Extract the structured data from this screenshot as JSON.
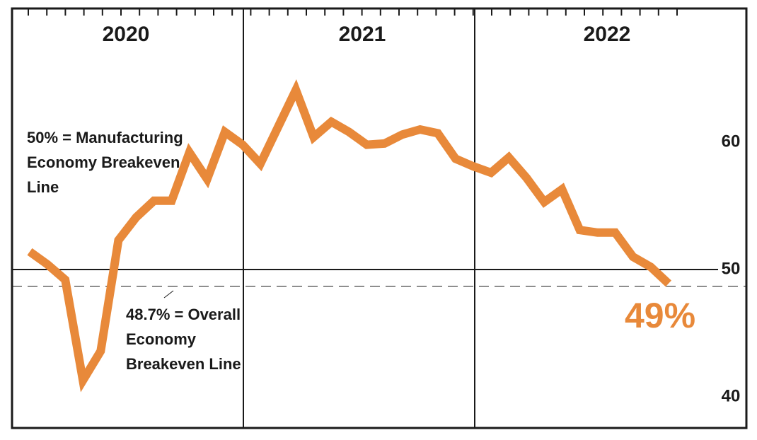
{
  "chart_data": {
    "type": "line",
    "year_labels": [
      "2020",
      "2021",
      "2022"
    ],
    "values": [
      51.4,
      50.4,
      49.2,
      41.3,
      43.6,
      52.3,
      54.1,
      55.4,
      55.4,
      59.2,
      57.1,
      60.8,
      59.8,
      58.3,
      61.2,
      64.1,
      60.4,
      61.6,
      60.8,
      59.8,
      59.9,
      60.6,
      61.0,
      60.7,
      58.7,
      58.1,
      57.6,
      58.8,
      57.2,
      55.3,
      56.3,
      53.1,
      52.9,
      52.9,
      51.0,
      50.2,
      48.9
    ],
    "color": "#e8893a",
    "ylim": [
      37.56,
      70.5
    ],
    "yticks": [
      40,
      50,
      60
    ],
    "grid": false,
    "reference_lines": [
      {
        "value": 50,
        "label": [
          "50% = Manufacturing",
          "Economy Breakeven",
          "Line"
        ],
        "style": "solid"
      },
      {
        "value": 48.7,
        "label": [
          "48.7% = Overall",
          "Economy",
          "Breakeven Line"
        ],
        "style": "dashed"
      }
    ],
    "end_label": "49%"
  }
}
